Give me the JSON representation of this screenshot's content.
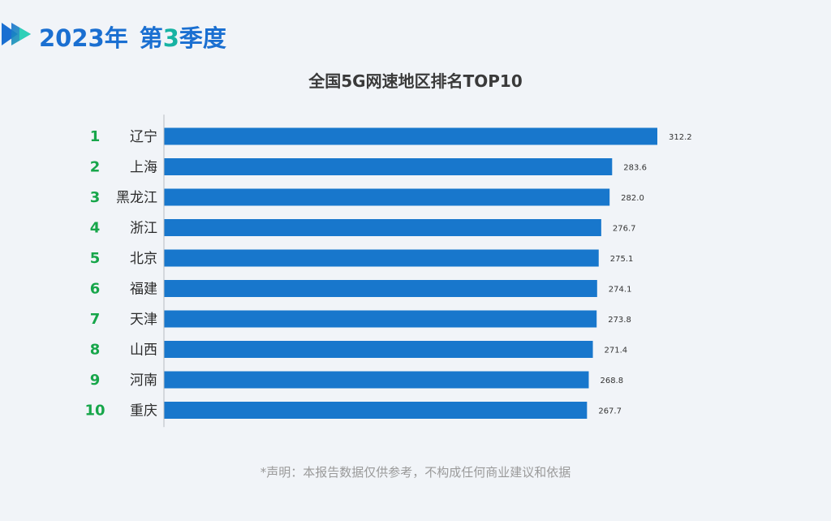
{
  "header": {
    "year": "2023年",
    "quarter_prefix": "第",
    "quarter_number": "3",
    "quarter_suffix": "季度"
  },
  "colors": {
    "brand_blue": "#1a6fd1",
    "brand_teal": "#17b3a3",
    "bar": "#1877cc",
    "rank_green": "#17a64a"
  },
  "chart_data": {
    "type": "bar",
    "orientation": "horizontal",
    "title": "全国5G网速地区排名TOP10",
    "ranks": [
      "1",
      "2",
      "3",
      "4",
      "5",
      "6",
      "7",
      "8",
      "9",
      "10"
    ],
    "categories": [
      "辽宁",
      "上海",
      "黑龙江",
      "浙江",
      "北京",
      "福建",
      "天津",
      "山西",
      "河南",
      "重庆"
    ],
    "values": [
      312.2,
      283.6,
      282.0,
      276.7,
      275.1,
      274.1,
      273.8,
      271.4,
      268.8,
      267.7
    ],
    "value_labels": [
      "312.2",
      "283.6",
      "282.0",
      "276.7",
      "275.1",
      "274.1",
      "273.8",
      "271.4",
      "268.8",
      "267.7"
    ],
    "xlim": [
      0,
      320
    ],
    "grid": false,
    "legend": "none"
  },
  "footer": {
    "disclaimer": "*声明：本报告数据仅供参考，不构成任何商业建议和依据"
  }
}
